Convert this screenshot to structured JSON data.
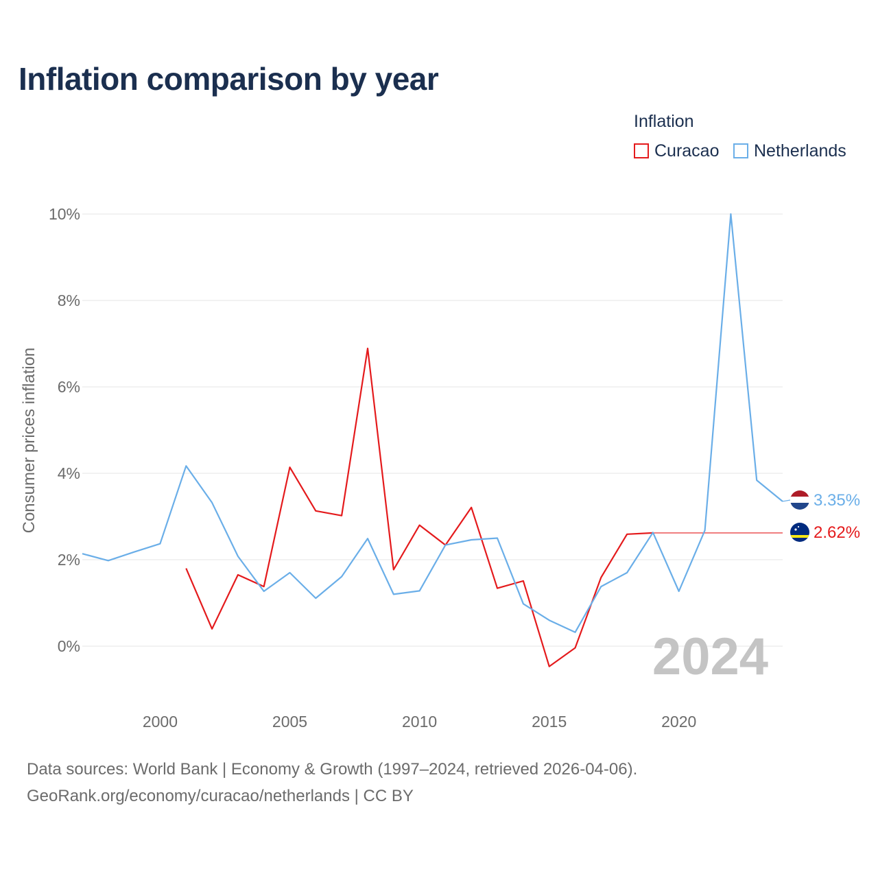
{
  "chart_data": {
    "type": "line",
    "title": "Inflation comparison by year",
    "legend_title": "Inflation",
    "ylabel": "Consumer prices inflation",
    "xlabel": "",
    "xlim": [
      1997,
      2024
    ],
    "ylim": [
      -1,
      10
    ],
    "x_ticks": [
      2000,
      2005,
      2010,
      2015,
      2020
    ],
    "y_ticks": [
      0,
      2,
      4,
      6,
      8,
      10
    ],
    "y_tick_labels": [
      "0%",
      "2%",
      "4%",
      "6%",
      "8%",
      "10%"
    ],
    "year_watermark": "2024",
    "series": [
      {
        "name": "Curacao",
        "color": "#e41a1c",
        "end_label": "2.62%",
        "flag": "curacao",
        "points": [
          [
            2001,
            1.8
          ],
          [
            2002,
            0.4
          ],
          [
            2003,
            1.65
          ],
          [
            2004,
            1.38
          ],
          [
            2005,
            4.14
          ],
          [
            2006,
            3.13
          ],
          [
            2007,
            3.02
          ],
          [
            2008,
            6.89
          ],
          [
            2009,
            1.77
          ],
          [
            2010,
            2.8
          ],
          [
            2011,
            2.34
          ],
          [
            2012,
            3.21
          ],
          [
            2013,
            1.34
          ],
          [
            2014,
            1.51
          ],
          [
            2015,
            -0.47
          ],
          [
            2016,
            -0.04
          ],
          [
            2017,
            1.59
          ],
          [
            2018,
            2.59
          ],
          [
            2019,
            2.62
          ]
        ],
        "carried_to": 2024,
        "carried_value": 2.62
      },
      {
        "name": "Netherlands",
        "color": "#6aaee8",
        "end_label": "3.35%",
        "flag": "netherlands",
        "points": [
          [
            1997,
            2.14
          ],
          [
            1998,
            1.98
          ],
          [
            1999,
            2.18
          ],
          [
            2000,
            2.37
          ],
          [
            2001,
            4.17
          ],
          [
            2002,
            3.32
          ],
          [
            2003,
            2.08
          ],
          [
            2004,
            1.27
          ],
          [
            2005,
            1.7
          ],
          [
            2006,
            1.11
          ],
          [
            2007,
            1.61
          ],
          [
            2008,
            2.49
          ],
          [
            2009,
            1.2
          ],
          [
            2010,
            1.28
          ],
          [
            2011,
            2.34
          ],
          [
            2012,
            2.46
          ],
          [
            2013,
            2.5
          ],
          [
            2014,
            0.98
          ],
          [
            2015,
            0.6
          ],
          [
            2016,
            0.32
          ],
          [
            2017,
            1.38
          ],
          [
            2018,
            1.7
          ],
          [
            2019,
            2.63
          ],
          [
            2020,
            1.27
          ],
          [
            2021,
            2.68
          ],
          [
            2022,
            10.0
          ],
          [
            2023,
            3.84
          ],
          [
            2024,
            3.35
          ]
        ]
      }
    ]
  },
  "footer": {
    "source_line_1": "Data sources: World Bank | Economy & Growth (1997–2024, retrieved 2026-04-06).",
    "source_line_2": "GeoRank.org/economy/curacao/netherlands | CC BY"
  }
}
